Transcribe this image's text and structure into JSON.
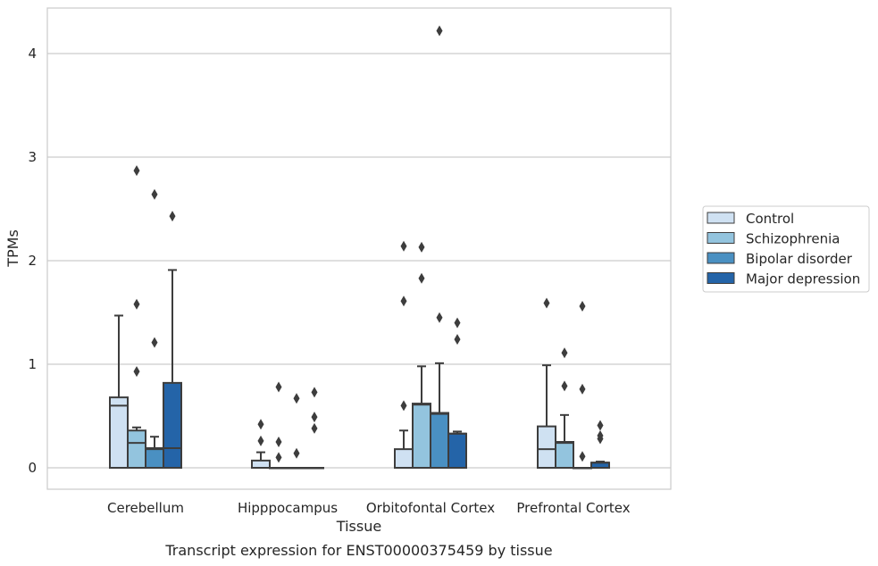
{
  "chart_data": {
    "type": "boxplot",
    "xlabel": "Tissue",
    "ylabel": "TPMs",
    "caption": "Transcript expression for ENST00000375459 by tissue",
    "ylim": [
      -0.2,
      4.45
    ],
    "yticks": [
      0,
      1,
      2,
      3,
      4
    ],
    "grid": "horizontal",
    "legend_placement": "right",
    "categories": [
      "Cerebellum",
      "Hipppocampus",
      "Orbitofontal Cortex",
      "Prefrontal Cortex"
    ],
    "series": [
      {
        "name": "Control",
        "color": "#cfe1f2",
        "boxes": [
          {
            "whislo": 0,
            "q1": 0,
            "med": 0.6,
            "q3": 0.68,
            "whishi": 1.47,
            "fliers": []
          },
          {
            "whislo": 0,
            "q1": 0,
            "med": 0,
            "q3": 0.07,
            "whishi": 0.15,
            "fliers": [
              0.42,
              0.26
            ]
          },
          {
            "whislo": 0,
            "q1": 0,
            "med": 0,
            "q3": 0.18,
            "whishi": 0.36,
            "fliers": [
              2.14,
              1.61,
              0.6
            ]
          },
          {
            "whislo": 0,
            "q1": 0,
            "med": 0.18,
            "q3": 0.4,
            "whishi": 0.99,
            "fliers": [
              1.59
            ]
          }
        ]
      },
      {
        "name": "Schizophrenia",
        "color": "#93c4de",
        "boxes": [
          {
            "whislo": 0,
            "q1": 0,
            "med": 0.24,
            "q3": 0.36,
            "whishi": 0.39,
            "fliers": [
              2.87,
              1.58,
              0.93
            ]
          },
          {
            "whislo": 0,
            "q1": 0,
            "med": 0,
            "q3": 0,
            "whishi": 0,
            "fliers": [
              0.78,
              0.25,
              0.1
            ]
          },
          {
            "whislo": 0,
            "q1": 0,
            "med": 0.61,
            "q3": 0.62,
            "whishi": 0.98,
            "fliers": [
              2.13,
              1.83
            ]
          },
          {
            "whislo": 0,
            "q1": 0,
            "med": 0.24,
            "q3": 0.25,
            "whishi": 0.51,
            "fliers": [
              1.11,
              0.79
            ]
          }
        ]
      },
      {
        "name": "Bipolar disorder",
        "color": "#4a90c2",
        "boxes": [
          {
            "whislo": 0,
            "q1": 0,
            "med": 0.18,
            "q3": 0.19,
            "whishi": 0.3,
            "fliers": [
              2.64,
              1.21
            ]
          },
          {
            "whislo": 0,
            "q1": 0,
            "med": 0,
            "q3": 0,
            "whishi": 0,
            "fliers": [
              0.67,
              0.14
            ]
          },
          {
            "whislo": 0,
            "q1": 0,
            "med": 0.52,
            "q3": 0.53,
            "whishi": 1.01,
            "fliers": [
              4.22,
              1.45
            ]
          },
          {
            "whislo": 0,
            "q1": 0,
            "med": 0,
            "q3": 0,
            "whishi": 0,
            "fliers": [
              1.56,
              0.76,
              0.11
            ]
          }
        ]
      },
      {
        "name": "Major depression",
        "color": "#2464a8",
        "boxes": [
          {
            "whislo": 0,
            "q1": 0,
            "med": 0.19,
            "q3": 0.82,
            "whishi": 1.91,
            "fliers": [
              2.43
            ]
          },
          {
            "whislo": 0,
            "q1": 0,
            "med": 0,
            "q3": 0,
            "whishi": 0,
            "fliers": [
              0.73,
              0.49,
              0.38
            ]
          },
          {
            "whislo": 0,
            "q1": 0,
            "med": 0.33,
            "q3": 0.33,
            "whishi": 0.35,
            "fliers": [
              1.4,
              1.24
            ]
          },
          {
            "whislo": 0,
            "q1": 0,
            "med": 0.05,
            "q3": 0.05,
            "whishi": 0.06,
            "fliers": [
              0.41,
              0.31,
              0.28
            ]
          }
        ]
      }
    ]
  }
}
